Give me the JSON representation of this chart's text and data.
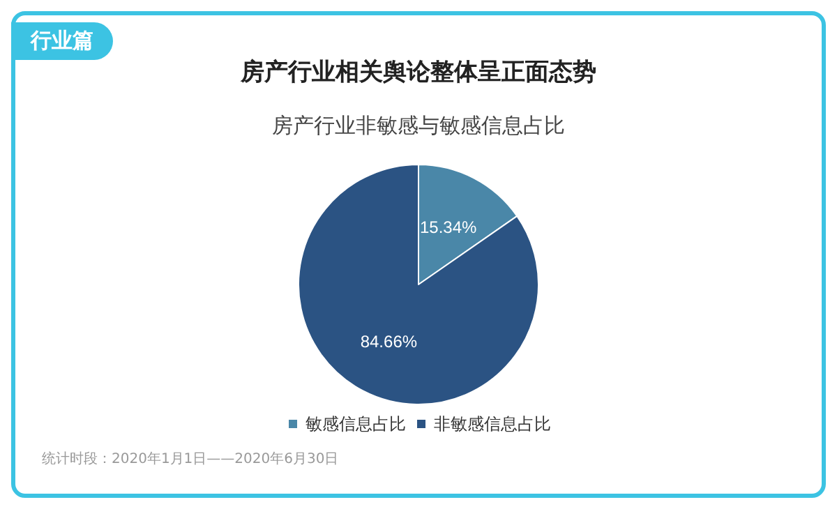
{
  "chart_data": {
    "type": "pie",
    "title": "房产行业相关舆论整体呈正面态势",
    "subtitle": "房产行业非敏感与敏感信息占比",
    "categories": [
      "敏感信息占比",
      "非敏感信息占比"
    ],
    "values": [
      15.34,
      84.66
    ],
    "colors": [
      "#4a87a8",
      "#2b5383"
    ],
    "value_labels": [
      "15.34%",
      "84.66%"
    ],
    "legend": "bottom",
    "annotations": [
      "行业篇",
      "统计时段：2020年1月1日——2020年6月30日"
    ]
  }
}
